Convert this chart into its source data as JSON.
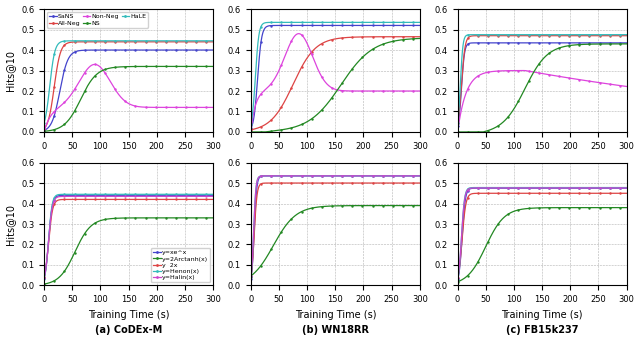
{
  "figure_title_bottom": [
    "(a) CoDEx-M",
    "(b) WN18RR",
    "(c) FB15k237"
  ],
  "legend1_labels": [
    "SaNS",
    "All-Neg",
    "Non-Neg",
    "NS",
    "HaLE"
  ],
  "legend1_colors": [
    "#4444cc",
    "#dd4444",
    "#dd44dd",
    "#228822",
    "#33bbbb"
  ],
  "legend2_labels": [
    "y=xe^x",
    "y=2Arctanh(x)",
    "y  2x",
    "y=Henon(x)",
    "y=Halin(x)"
  ],
  "legend2_colors": [
    "#4444cc",
    "#228822",
    "#dd4444",
    "#33bbbb",
    "#cc44cc"
  ],
  "xlim": [
    0,
    300
  ],
  "ylim": [
    0.0,
    0.6
  ],
  "yticks": [
    0.0,
    0.1,
    0.2,
    0.3,
    0.4,
    0.5,
    0.6
  ],
  "xticks": [
    0,
    50,
    100,
    150,
    200,
    250,
    300
  ],
  "xlabel": "Training Time (s)",
  "ylabel": "Hits@10"
}
